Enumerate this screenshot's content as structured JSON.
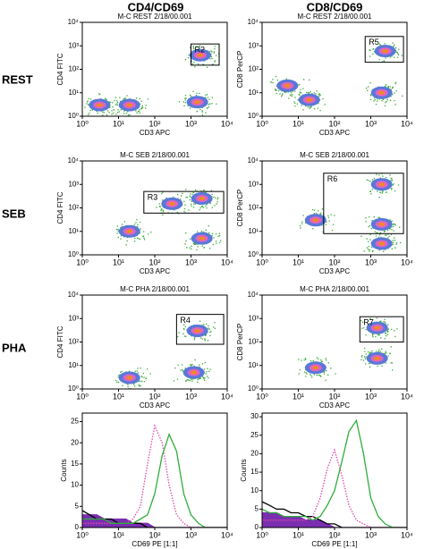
{
  "column_headers": [
    "CD4/CD69",
    "CD8/CD69"
  ],
  "row_labels": [
    "REST",
    "SEB",
    "PHA"
  ],
  "chart_data": [
    {
      "type": "scatter",
      "title": "M-C REST 2/18/00.001",
      "xlabel": "CD3 APC",
      "ylabel": "CD4 FITC",
      "xlim": [
        1,
        10000
      ],
      "ylim": [
        1,
        10000
      ],
      "log": true,
      "xticks": [
        {
          "value": 1,
          "label": "10⁰"
        },
        {
          "value": 10,
          "label": "10¹"
        },
        {
          "value": 100,
          "label": "10²"
        },
        {
          "value": 1000,
          "label": "10³"
        },
        {
          "value": 10000,
          "label": "10⁴"
        }
      ],
      "yticks": [
        {
          "value": 1,
          "label": "10⁰"
        },
        {
          "value": 10,
          "label": "10¹"
        },
        {
          "value": 100,
          "label": "10²"
        },
        {
          "value": 1000,
          "label": "10³"
        },
        {
          "value": 10000,
          "label": "10⁴"
        }
      ],
      "clusters": {
        "x": [
          3,
          20,
          1500,
          1800
        ],
        "y": [
          3,
          3,
          4,
          400
        ]
      },
      "gate": {
        "label": "R2",
        "x": [
          1000,
          6000
        ],
        "y": [
          150,
          1200
        ]
      }
    },
    {
      "type": "scatter",
      "title": "M-C REST 2/18/00.001",
      "xlabel": "CD3 APC",
      "ylabel": "CD8 PerCP",
      "xlim": [
        1,
        10000
      ],
      "ylim": [
        1,
        10000
      ],
      "log": true,
      "xticks": [
        {
          "value": 1,
          "label": "10⁰"
        },
        {
          "value": 10,
          "label": "10¹"
        },
        {
          "value": 100,
          "label": "10²"
        },
        {
          "value": 1000,
          "label": "10³"
        },
        {
          "value": 10000,
          "label": "10⁴"
        }
      ],
      "yticks": [
        {
          "value": 1,
          "label": "10⁰"
        },
        {
          "value": 10,
          "label": "10¹"
        },
        {
          "value": 100,
          "label": "10²"
        },
        {
          "value": 1000,
          "label": "10³"
        },
        {
          "value": 10000,
          "label": "10⁴"
        }
      ],
      "clusters": {
        "x": [
          5,
          20,
          2000,
          2500
        ],
        "y": [
          20,
          5,
          10,
          600
        ]
      },
      "gate": {
        "label": "R5",
        "x": [
          700,
          8000
        ],
        "y": [
          200,
          2500
        ]
      }
    },
    {
      "type": "scatter",
      "title": "M-C SEB 2/18/00.001",
      "xlabel": "CD3 APC",
      "ylabel": "CD4 FITC",
      "xlim": [
        1,
        10000
      ],
      "ylim": [
        1,
        10000
      ],
      "log": true,
      "xticks": [
        {
          "value": 1,
          "label": "10⁰"
        },
        {
          "value": 10,
          "label": "10¹"
        },
        {
          "value": 100,
          "label": "10²"
        },
        {
          "value": 1000,
          "label": "10³"
        },
        {
          "value": 10000,
          "label": "10⁴"
        }
      ],
      "yticks": [
        {
          "value": 1,
          "label": "10⁰"
        },
        {
          "value": 10,
          "label": "10¹"
        },
        {
          "value": 100,
          "label": "10²"
        },
        {
          "value": 1000,
          "label": "10³"
        },
        {
          "value": 10000,
          "label": "10⁴"
        }
      ],
      "clusters": {
        "x": [
          20,
          2000,
          2000,
          300
        ],
        "y": [
          10,
          5,
          250,
          150
        ]
      },
      "gate": {
        "label": "R3",
        "x": [
          50,
          8000
        ],
        "y": [
          60,
          500
        ]
      }
    },
    {
      "type": "scatter",
      "title": "M-C SEB 2/18/00.001",
      "xlabel": "CD3 APC",
      "ylabel": "CD8 PerCP",
      "xlim": [
        1,
        10000
      ],
      "ylim": [
        1,
        10000
      ],
      "log": true,
      "xticks": [
        {
          "value": 1,
          "label": "10⁰"
        },
        {
          "value": 10,
          "label": "10¹"
        },
        {
          "value": 100,
          "label": "10²"
        },
        {
          "value": 1000,
          "label": "10³"
        },
        {
          "value": 10000,
          "label": "10⁴"
        }
      ],
      "yticks": [
        {
          "value": 1,
          "label": "10⁰"
        },
        {
          "value": 10,
          "label": "10¹"
        },
        {
          "value": 100,
          "label": "10²"
        },
        {
          "value": 1000,
          "label": "10³"
        },
        {
          "value": 10000,
          "label": "10⁴"
        }
      ],
      "clusters": {
        "x": [
          30,
          2000,
          2000,
          2000
        ],
        "y": [
          30,
          20,
          1000,
          3
        ]
      },
      "gate": {
        "label": "R6",
        "x": [
          50,
          8000
        ],
        "y": [
          8,
          3000
        ]
      }
    },
    {
      "type": "scatter",
      "title": "M-C PHA 2/18/00.001",
      "xlabel": "CD3 APC",
      "ylabel": "CD4 FITC",
      "xlim": [
        1,
        10000
      ],
      "ylim": [
        1,
        10000
      ],
      "log": true,
      "xticks": [
        {
          "value": 1,
          "label": "10⁰"
        },
        {
          "value": 10,
          "label": "10¹"
        },
        {
          "value": 100,
          "label": "10²"
        },
        {
          "value": 1000,
          "label": "10³"
        },
        {
          "value": 10000,
          "label": "10⁴"
        }
      ],
      "yticks": [
        {
          "value": 1,
          "label": "10⁰"
        },
        {
          "value": 10,
          "label": "10¹"
        },
        {
          "value": 100,
          "label": "10²"
        },
        {
          "value": 1000,
          "label": "10³"
        },
        {
          "value": 10000,
          "label": "10⁴"
        }
      ],
      "clusters": {
        "x": [
          20,
          1200,
          1500
        ],
        "y": [
          3,
          5,
          300
        ]
      },
      "gate": {
        "label": "R4",
        "x": [
          400,
          8000
        ],
        "y": [
          80,
          1500
        ]
      }
    },
    {
      "type": "scatter",
      "title": "M-C PHA 2/18/00.001",
      "xlabel": "CD3 APC",
      "ylabel": "CD8 PerCP",
      "xlim": [
        1,
        10000
      ],
      "ylim": [
        1,
        10000
      ],
      "log": true,
      "xticks": [
        {
          "value": 1,
          "label": "10⁰"
        },
        {
          "value": 10,
          "label": "10¹"
        },
        {
          "value": 100,
          "label": "10²"
        },
        {
          "value": 1000,
          "label": "10³"
        },
        {
          "value": 10000,
          "label": "10⁴"
        }
      ],
      "yticks": [
        {
          "value": 1,
          "label": "10⁰"
        },
        {
          "value": 10,
          "label": "10¹"
        },
        {
          "value": 100,
          "label": "10²"
        },
        {
          "value": 1000,
          "label": "10³"
        },
        {
          "value": 10000,
          "label": "10⁴"
        }
      ],
      "clusters": {
        "x": [
          30,
          1500,
          1500
        ],
        "y": [
          8,
          20,
          400
        ]
      },
      "gate": {
        "label": "R7",
        "x": [
          500,
          8000
        ],
        "y": [
          100,
          1200
        ]
      }
    },
    {
      "type": "line",
      "xlabel": "CD69 PE [1:1]",
      "ylabel": "Counts",
      "xlim": [
        1,
        10000
      ],
      "ylim": [
        0,
        27
      ],
      "log": true,
      "xticks": [
        {
          "value": 1,
          "label": "10⁰"
        },
        {
          "value": 10,
          "label": "10¹"
        },
        {
          "value": 100,
          "label": "10²"
        },
        {
          "value": 1000,
          "label": "10³"
        },
        {
          "value": 10000,
          "label": "10⁴"
        }
      ],
      "yticks": [
        0,
        5,
        10,
        15,
        20,
        25
      ],
      "x": [
        1,
        1.6,
        2.5,
        4,
        6.3,
        10,
        16,
        25,
        40,
        63,
        100,
        160,
        250,
        400,
        630,
        1000,
        1600,
        2500,
        4000,
        6300,
        10000
      ],
      "series": [
        {
          "color": "#7a2fb0",
          "style": "filled",
          "values": [
            3,
            3,
            3,
            2,
            2,
            2,
            2,
            1,
            1,
            1,
            0,
            0,
            0,
            0,
            0,
            0,
            0,
            0,
            0,
            0,
            0
          ]
        },
        {
          "color": "#000000",
          "style": "solid",
          "values": [
            4,
            3,
            2,
            2,
            2,
            1,
            1,
            1,
            1,
            0,
            0,
            0,
            0,
            0,
            0,
            0,
            0,
            0,
            0,
            0,
            0
          ]
        },
        {
          "color": "#e04aa8",
          "style": "dotted",
          "values": [
            1,
            1,
            1,
            1,
            1,
            1,
            1,
            2,
            5,
            15,
            24,
            20,
            10,
            3,
            1,
            0,
            0,
            0,
            0,
            0,
            0
          ]
        },
        {
          "color": "#2fae3a",
          "style": "solid",
          "values": [
            2,
            2,
            2,
            2,
            1,
            1,
            1,
            1,
            2,
            3,
            8,
            17,
            22,
            18,
            8,
            3,
            1,
            0,
            0,
            0,
            0
          ]
        }
      ]
    },
    {
      "type": "line",
      "xlabel": "CD69 PE [1:1]",
      "ylabel": "Counts",
      "xlim": [
        1,
        10000
      ],
      "ylim": [
        0,
        31
      ],
      "log": true,
      "xticks": [
        {
          "value": 1,
          "label": "10⁰"
        },
        {
          "value": 10,
          "label": "10¹"
        },
        {
          "value": 100,
          "label": "10²"
        },
        {
          "value": 1000,
          "label": "10³"
        },
        {
          "value": 10000,
          "label": "10⁴"
        }
      ],
      "yticks": [
        0,
        5,
        10,
        15,
        20,
        25,
        30
      ],
      "x": [
        1,
        1.6,
        2.5,
        4,
        6.3,
        10,
        16,
        25,
        40,
        63,
        100,
        160,
        250,
        400,
        630,
        1000,
        1600,
        2500,
        4000,
        6300,
        10000
      ],
      "series": [
        {
          "color": "#7a2fb0",
          "style": "filled",
          "values": [
            4,
            4,
            4,
            3,
            3,
            3,
            2,
            2,
            2,
            1,
            0,
            0,
            0,
            0,
            0,
            0,
            0,
            0,
            0,
            0,
            0
          ]
        },
        {
          "color": "#000000",
          "style": "solid",
          "values": [
            7,
            6,
            5,
            5,
            4,
            4,
            3,
            3,
            2,
            1,
            1,
            0,
            0,
            0,
            0,
            0,
            0,
            0,
            0,
            0,
            0
          ]
        },
        {
          "color": "#e04aa8",
          "style": "dotted",
          "values": [
            2,
            2,
            2,
            2,
            2,
            2,
            2,
            3,
            8,
            16,
            21,
            14,
            6,
            2,
            1,
            0,
            0,
            0,
            0,
            0,
            0
          ]
        },
        {
          "color": "#2fae3a",
          "style": "solid",
          "values": [
            5,
            4,
            4,
            3,
            3,
            3,
            3,
            2,
            3,
            6,
            10,
            18,
            26,
            29,
            20,
            8,
            3,
            1,
            0,
            0,
            0
          ]
        }
      ]
    }
  ]
}
